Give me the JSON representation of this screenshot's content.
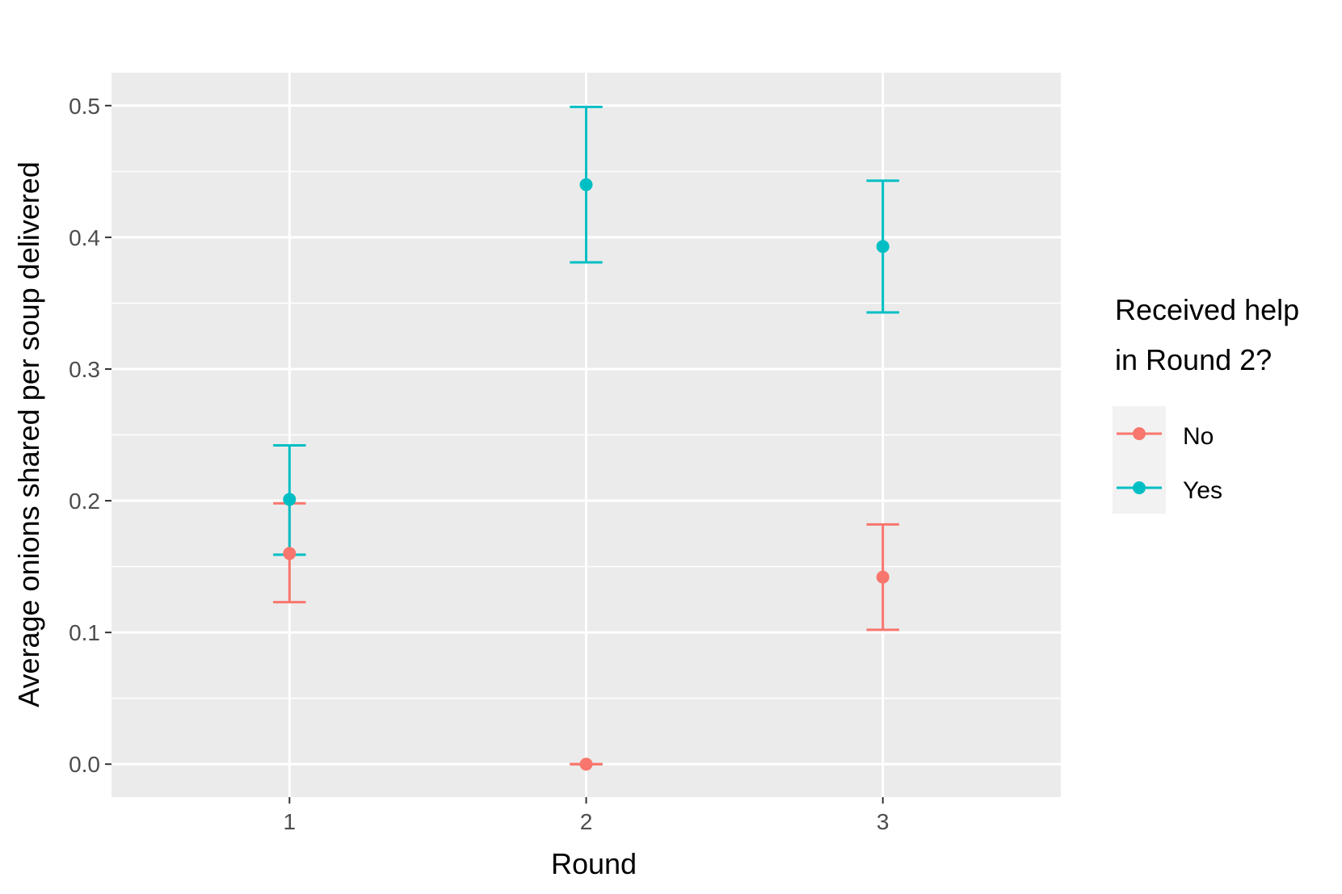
{
  "chart_data": {
    "type": "scatter",
    "xlabel": "Round",
    "ylabel": "Average onions shared per soup delivered",
    "categories": [
      "1",
      "2",
      "3"
    ],
    "xlim": [
      0.4,
      3.6
    ],
    "ylim": [
      -0.025,
      0.525
    ],
    "yticks": [
      "0.0",
      "0.1",
      "0.2",
      "0.3",
      "0.4",
      "0.5"
    ],
    "grid": true,
    "legend": {
      "title_lines": [
        "Received help",
        "in Round 2?"
      ],
      "position": "right"
    },
    "series": [
      {
        "name": "No",
        "color": "#F8766D",
        "points": [
          {
            "x": 1,
            "y": 0.16,
            "ymin": 0.123,
            "ymax": 0.198
          },
          {
            "x": 2,
            "y": 0.0,
            "ymin": 0.0,
            "ymax": 0.0
          },
          {
            "x": 3,
            "y": 0.142,
            "ymin": 0.102,
            "ymax": 0.182
          }
        ]
      },
      {
        "name": "Yes",
        "color": "#00BFC4",
        "points": [
          {
            "x": 1,
            "y": 0.201,
            "ymin": 0.159,
            "ymax": 0.242
          },
          {
            "x": 2,
            "y": 0.44,
            "ymin": 0.381,
            "ymax": 0.499
          },
          {
            "x": 3,
            "y": 0.393,
            "ymin": 0.343,
            "ymax": 0.443
          }
        ]
      }
    ]
  }
}
